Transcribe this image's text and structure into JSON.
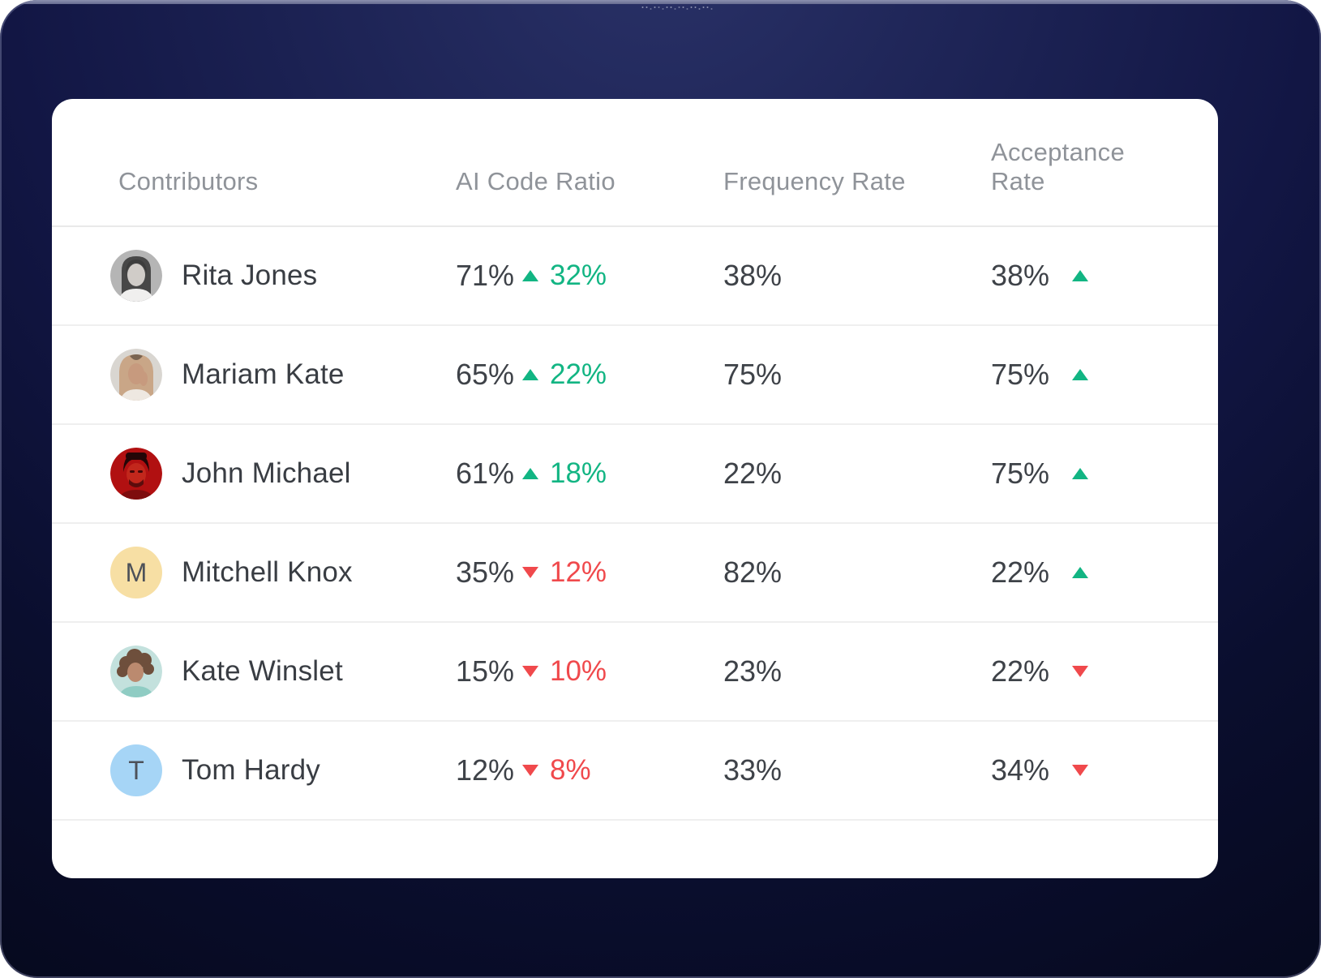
{
  "frame": {
    "speaker_dot_count": 18
  },
  "table": {
    "headers": [
      "Contributors",
      "AI Code Ratio",
      "Frequency Rate",
      "Acceptance Rate"
    ],
    "rows": [
      {
        "name": "Rita Jones",
        "avatar": "photo-grayscale-woman",
        "ai_code_ratio": "71%",
        "ai_delta": "32%",
        "ai_trend": "up",
        "frequency_rate": "38%",
        "acceptance_rate": "38%",
        "acceptance_trend": "up"
      },
      {
        "name": "Mariam Kate",
        "avatar": "photo-blonde-woman",
        "ai_code_ratio": "65%",
        "ai_delta": "22%",
        "ai_trend": "up",
        "frequency_rate": "75%",
        "acceptance_rate": "75%",
        "acceptance_trend": "up"
      },
      {
        "name": "John Michael",
        "avatar": "photo-red-tint-man",
        "ai_code_ratio": "61%",
        "ai_delta": "18%",
        "ai_trend": "up",
        "frequency_rate": "22%",
        "acceptance_rate": "75%",
        "acceptance_trend": "up"
      },
      {
        "name": "Mitchell Knox",
        "avatar": "initial",
        "initial": "M",
        "avatar_bg": "#f7dfa4",
        "ai_code_ratio": "35%",
        "ai_delta": "12%",
        "ai_trend": "down",
        "frequency_rate": "82%",
        "acceptance_rate": "22%",
        "acceptance_trend": "up"
      },
      {
        "name": "Kate Winslet",
        "avatar": "photo-curly-hair-woman",
        "ai_code_ratio": "15%",
        "ai_delta": "10%",
        "ai_trend": "down",
        "frequency_rate": "23%",
        "acceptance_rate": "22%",
        "acceptance_trend": "down"
      },
      {
        "name": "Tom Hardy",
        "avatar": "initial",
        "initial": "T",
        "avatar_bg": "#a6d5f6",
        "ai_code_ratio": "12%",
        "ai_delta": "8%",
        "ai_trend": "down",
        "frequency_rate": "33%",
        "acceptance_rate": "34%",
        "acceptance_trend": "down"
      }
    ]
  },
  "colors": {
    "trend_up": "#12b583",
    "trend_down": "#f0494c",
    "text_primary": "#3e4248",
    "header_text": "#8f9399",
    "divider": "#efefef",
    "card_background": "#ffffff",
    "frame_top": "#2a3268",
    "frame_bottom": "#05081a"
  }
}
